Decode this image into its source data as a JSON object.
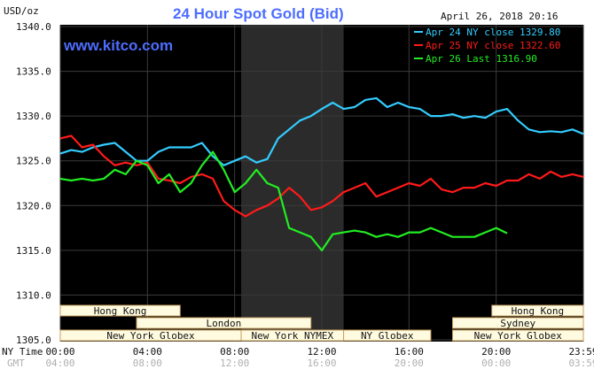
{
  "chart_data": {
    "type": "line",
    "title": "24 Hour Spot Gold (Bid)",
    "watermark": "www.kitco.com",
    "timestamp": "April 26, 2018 20:16",
    "ylabel": "USD/oz",
    "ylim": [
      1305,
      1340
    ],
    "ytick_labels": [
      "1340.0",
      "1335.0",
      "1330.0",
      "1325.0",
      "1320.0",
      "1315.0",
      "1310.0",
      "1305.0"
    ],
    "xlim": [
      0,
      24
    ],
    "xtick_labels_ny": [
      "00:00",
      "04:00",
      "08:00",
      "12:00",
      "16:00",
      "20:00",
      "23:59"
    ],
    "xtick_labels_gmt": [
      "04:00",
      "08:00",
      "12:00",
      "16:00",
      "20:00",
      "00:00",
      "03:59"
    ],
    "x_row_labels": {
      "ny": "NY Time",
      "gmt": "GMT"
    },
    "grid": true,
    "legend_position": "top-right",
    "shaded_region": [
      8.3,
      13.0
    ],
    "series": [
      {
        "name": "Apr 24 NY close 1329.80",
        "color": "#33ccff",
        "x": [
          0,
          0.5,
          1,
          1.5,
          2,
          2.5,
          3,
          3.5,
          4,
          4.5,
          5,
          5.5,
          6,
          6.5,
          7,
          7.5,
          8,
          8.5,
          9,
          9.5,
          10,
          10.5,
          11,
          11.5,
          12,
          12.5,
          13,
          13.5,
          14,
          14.5,
          15,
          15.5,
          16,
          16.5,
          17,
          17.5,
          18,
          18.5,
          19,
          19.5,
          20,
          20.5,
          21,
          21.5,
          22,
          22.5,
          23,
          23.5,
          24
        ],
        "y": [
          1325.8,
          1326.2,
          1326.0,
          1326.5,
          1326.8,
          1327.0,
          1326.0,
          1325.0,
          1325.0,
          1326.0,
          1326.5,
          1326.5,
          1326.5,
          1327.0,
          1325.5,
          1324.5,
          1325.0,
          1325.5,
          1324.8,
          1325.2,
          1327.5,
          1328.5,
          1329.5,
          1330.0,
          1330.8,
          1331.5,
          1330.8,
          1331.0,
          1331.8,
          1332.0,
          1331.0,
          1331.5,
          1331.0,
          1330.8,
          1330.0,
          1330.0,
          1330.2,
          1329.8,
          1330.0,
          1329.8,
          1330.5,
          1330.8,
          1329.5,
          1328.5,
          1328.2,
          1328.3,
          1328.2,
          1328.5,
          1328.0
        ]
      },
      {
        "name": "Apr 25 NY close 1322.60",
        "color": "#ff1a1a",
        "x": [
          0,
          0.5,
          1,
          1.5,
          2,
          2.5,
          3,
          3.5,
          4,
          4.5,
          5,
          5.5,
          6,
          6.5,
          7,
          7.5,
          8,
          8.5,
          9,
          9.5,
          10,
          10.5,
          11,
          11.5,
          12,
          12.5,
          13,
          13.5,
          14,
          14.5,
          15,
          15.5,
          16,
          16.5,
          17,
          17.5,
          18,
          18.5,
          19,
          19.5,
          20,
          20.5,
          21,
          21.5,
          22,
          22.5,
          23,
          23.5,
          24
        ],
        "y": [
          1327.5,
          1327.8,
          1326.5,
          1326.8,
          1325.5,
          1324.5,
          1324.8,
          1324.5,
          1324.8,
          1323.0,
          1322.8,
          1322.5,
          1323.2,
          1323.5,
          1323.0,
          1320.5,
          1319.5,
          1318.8,
          1319.5,
          1320.0,
          1320.8,
          1322.0,
          1321.0,
          1319.5,
          1319.8,
          1320.5,
          1321.5,
          1322.0,
          1322.5,
          1321.0,
          1321.5,
          1322.0,
          1322.5,
          1322.2,
          1323.0,
          1321.8,
          1321.5,
          1322.0,
          1322.0,
          1322.5,
          1322.2,
          1322.8,
          1322.8,
          1323.5,
          1323.0,
          1323.8,
          1323.2,
          1323.5,
          1323.2
        ]
      },
      {
        "name": "Apr 26 Last 1316.90",
        "color": "#22ee22",
        "x": [
          0,
          0.5,
          1,
          1.5,
          2,
          2.5,
          3,
          3.5,
          4,
          4.5,
          5,
          5.5,
          6,
          6.5,
          7,
          7.5,
          8,
          8.5,
          9,
          9.5,
          10,
          10.5,
          11,
          11.5,
          12,
          12.5,
          13,
          13.5,
          14,
          14.5,
          15,
          15.5,
          16,
          16.5,
          17,
          17.5,
          18,
          18.5,
          19,
          19.5,
          20,
          20.5
        ],
        "y": [
          1323.0,
          1322.8,
          1323.0,
          1322.8,
          1323.0,
          1324.0,
          1323.5,
          1325.0,
          1324.5,
          1322.5,
          1323.5,
          1321.5,
          1322.5,
          1324.5,
          1326.0,
          1324.0,
          1321.5,
          1322.5,
          1324.0,
          1322.5,
          1322.0,
          1317.5,
          1317.0,
          1316.5,
          1315.0,
          1316.8,
          1317.0,
          1317.2,
          1317.0,
          1316.5,
          1316.8,
          1316.5,
          1317.0,
          1317.0,
          1317.5,
          1317.0,
          1316.5,
          1316.5,
          1316.5,
          1317.0,
          1317.5,
          1316.9
        ]
      }
    ],
    "markets": [
      {
        "name": "Hong Kong",
        "start": 0,
        "end": 5.5,
        "row": 0
      },
      {
        "name": "London",
        "start": 3.5,
        "end": 11.5,
        "row": 1
      },
      {
        "name": "New York Globex",
        "start": 0,
        "end": 8.3,
        "row": 2
      },
      {
        "name": "New York NYMEX",
        "start": 8.3,
        "end": 13.0,
        "row": 2
      },
      {
        "name": "NY Globex",
        "start": 13.0,
        "end": 17.0,
        "row": 2
      },
      {
        "name": "Hong Kong",
        "start": 19.8,
        "end": 24,
        "row": 0
      },
      {
        "name": "Sydney",
        "start": 18.0,
        "end": 24,
        "row": 1
      },
      {
        "name": "New York Globex",
        "start": 18.0,
        "end": 24,
        "row": 2
      }
    ]
  },
  "colors": {
    "background": "#000000",
    "grid": "#3a3a3a",
    "shaded": "#2b2b2b",
    "market_box": "#fffbe0",
    "market_border": "#c8a060"
  }
}
